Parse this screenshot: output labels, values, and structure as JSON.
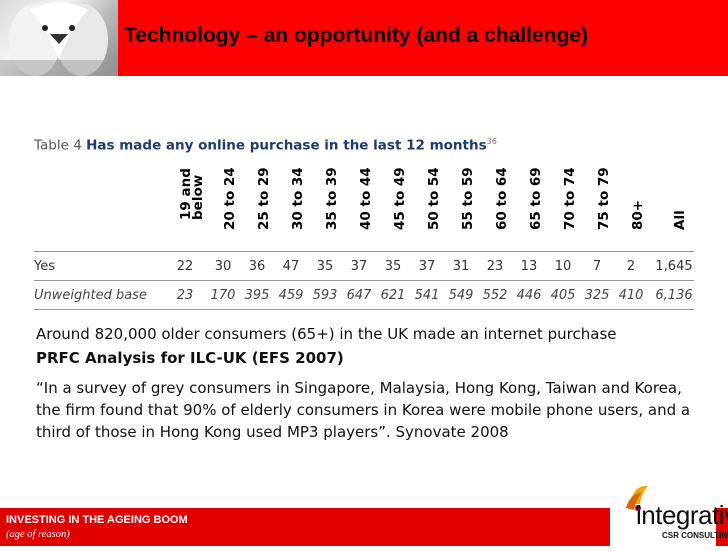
{
  "header": {
    "title": "Technology – an opportunity (and a challenge)"
  },
  "table": {
    "caption_prefix": "Table 4",
    "caption_bold": "Has made any online purchase in the last 12 months",
    "caption_note": "36",
    "columns": [
      "19 and below",
      "20 to 24",
      "25 to 29",
      "30 to 34",
      "35 to 39",
      "40 to 44",
      "45 to 49",
      "50 to 54",
      "55 to 59",
      "60 to 64",
      "65 to 69",
      "70 to 74",
      "75 to 79",
      "80+",
      "All"
    ],
    "rows": [
      {
        "label": "Yes",
        "values": [
          "22",
          "30",
          "36",
          "47",
          "35",
          "37",
          "35",
          "37",
          "31",
          "23",
          "13",
          "10",
          "7",
          "2",
          "1,645"
        ]
      },
      {
        "label": "Unweighted base",
        "values": [
          "23",
          "170",
          "395",
          "459",
          "593",
          "647",
          "621",
          "541",
          "549",
          "552",
          "446",
          "405",
          "325",
          "410",
          "6,136"
        ]
      }
    ]
  },
  "body": {
    "line1": "Around 820,000 older consumers (65+) in the UK made an internet purchase",
    "line2": "PRFC Analysis for ILC-UK (EFS 2007)",
    "quote": "“In a survey of grey consumers in Singapore, Malaysia, Hong Kong, Taiwan and Korea, the firm found that 90% of elderly consumers in Korea were mobile phone users, and a third of those in Hong Kong used MP3 players”. Synovate 2008"
  },
  "footer": {
    "title": "INVESTING IN THE AGEING BOOM",
    "subtitle": "(age of reason)",
    "logo_word": "integrative",
    "logo_sub": "CSR CONSULTING"
  },
  "colors": {
    "header_red": "#ff0000",
    "footer_red": "#e10000",
    "caption_blue": "#1f3c6e"
  },
  "icons": {
    "header_image": "swans-photo",
    "logo": "integrative-logo"
  }
}
